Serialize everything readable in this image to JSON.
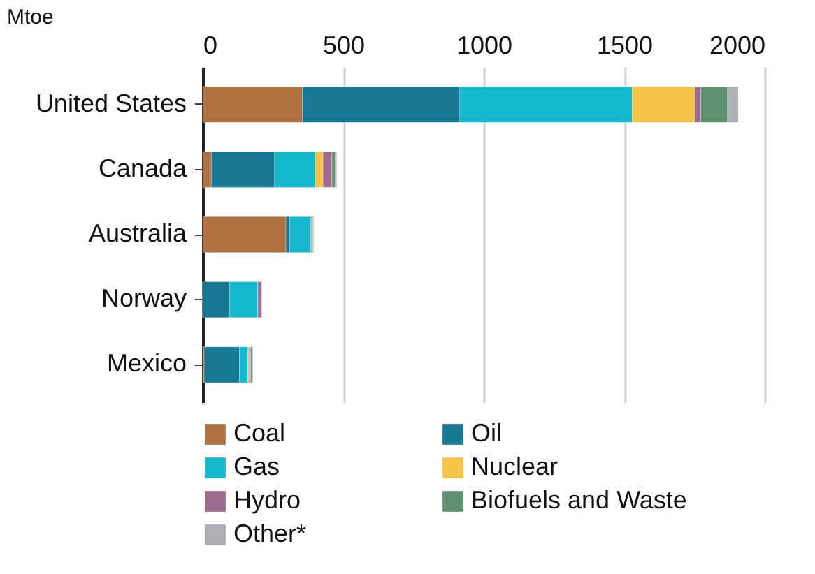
{
  "chart_data": {
    "type": "bar",
    "orientation": "horizontal",
    "stacked": true,
    "xlabel": "Mtoe",
    "categories": [
      "United States",
      "Canada",
      "Australia",
      "Norway",
      "Mexico"
    ],
    "series": [
      {
        "name": "Coal",
        "color": "#b07040",
        "values": [
          355,
          32,
          296,
          0,
          5
        ]
      },
      {
        "name": "Oil",
        "color": "#177895",
        "values": [
          558,
          224,
          13,
          95,
          126
        ]
      },
      {
        "name": "Gas",
        "color": "#14b8cc",
        "values": [
          616,
          144,
          76,
          101,
          30
        ]
      },
      {
        "name": "Nuclear",
        "color": "#f5c447",
        "values": [
          221,
          28,
          0,
          0,
          4
        ]
      },
      {
        "name": "Hydro",
        "color": "#9c6b8e",
        "values": [
          23,
          32,
          3,
          13,
          6
        ]
      },
      {
        "name": "Biofuels and Waste",
        "color": "#5f9170",
        "values": [
          95,
          12,
          4,
          2,
          6
        ]
      },
      {
        "name": "Other*",
        "color": "#aeb0b3",
        "values": [
          38,
          5,
          3,
          0,
          2
        ]
      }
    ],
    "xlim": [
      0,
      2000
    ],
    "xticks": [
      0,
      500,
      1000,
      1500,
      2000
    ],
    "grid": "x",
    "legend": "bottom"
  }
}
